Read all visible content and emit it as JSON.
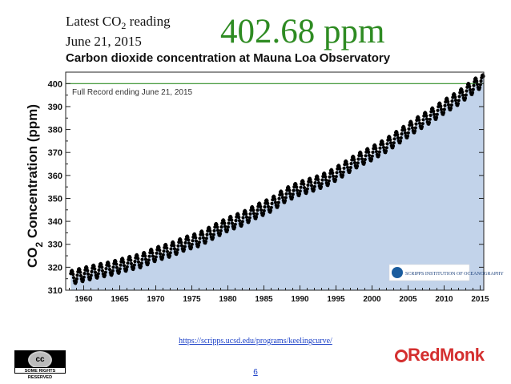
{
  "header": {
    "reading_line1_pre": "Latest CO",
    "reading_line1_sub": "2",
    "reading_line1_post": " reading",
    "reading_line2": "June 21, 2015",
    "reading_value": "402.68 ppm"
  },
  "chart_data": {
    "type": "line",
    "title": "Carbon dioxide concentration at Mauna Loa Observatory",
    "ylabel_pre": "CO",
    "ylabel_sub": "2",
    "ylabel_post": " Concentration (ppm)",
    "xlabel": "",
    "xlim": [
      1957.5,
      2015.5
    ],
    "ylim": [
      310,
      405
    ],
    "x_ticks": [
      "1960",
      "1965",
      "1970",
      "1975",
      "1980",
      "1985",
      "1990",
      "1995",
      "2000",
      "2005",
      "2010",
      "2015"
    ],
    "y_ticks": [
      "310",
      "320",
      "330",
      "340",
      "350",
      "360",
      "370",
      "380",
      "390",
      "400"
    ],
    "reference_line": {
      "y": 400,
      "label": "Full Record ending June 21, 2015",
      "color": "#2e8b22"
    },
    "fill_color": "#c2d3ea",
    "point_color": "#000000",
    "grid": false,
    "series": [
      {
        "x": [
          1958,
          1960,
          1962,
          1964,
          1966,
          1968,
          1970,
          1972,
          1974,
          1976,
          1978,
          1980,
          1982,
          1984,
          1986,
          1988,
          1990,
          1992,
          1994,
          1996,
          1998,
          2000,
          2002,
          2004,
          2006,
          2008,
          2010,
          2012,
          2014,
          2015
        ],
        "values": [
          315.3,
          316.9,
          318.4,
          319.6,
          321.4,
          322.9,
          325.7,
          327.5,
          330.2,
          332.1,
          335.4,
          338.7,
          341.1,
          344.4,
          347.2,
          351.5,
          354.4,
          356.3,
          358.8,
          362.6,
          366.6,
          369.6,
          373.2,
          377.5,
          381.9,
          385.6,
          389.9,
          393.8,
          398.6,
          400.8
        ],
        "seasonal_amplitude": 3
      }
    ],
    "logo_text": "SCRIPPS INSTITUTION OF OCEANOGRAPHY"
  },
  "footer": {
    "source_url": "https://scripps.ucsd.edu/programs/keelingcurve/",
    "page_number": "6",
    "cc_logo_text": "cc",
    "cc_rights_text": "SOME RIGHTS RESERVED",
    "brand_text": "RedMonk"
  }
}
